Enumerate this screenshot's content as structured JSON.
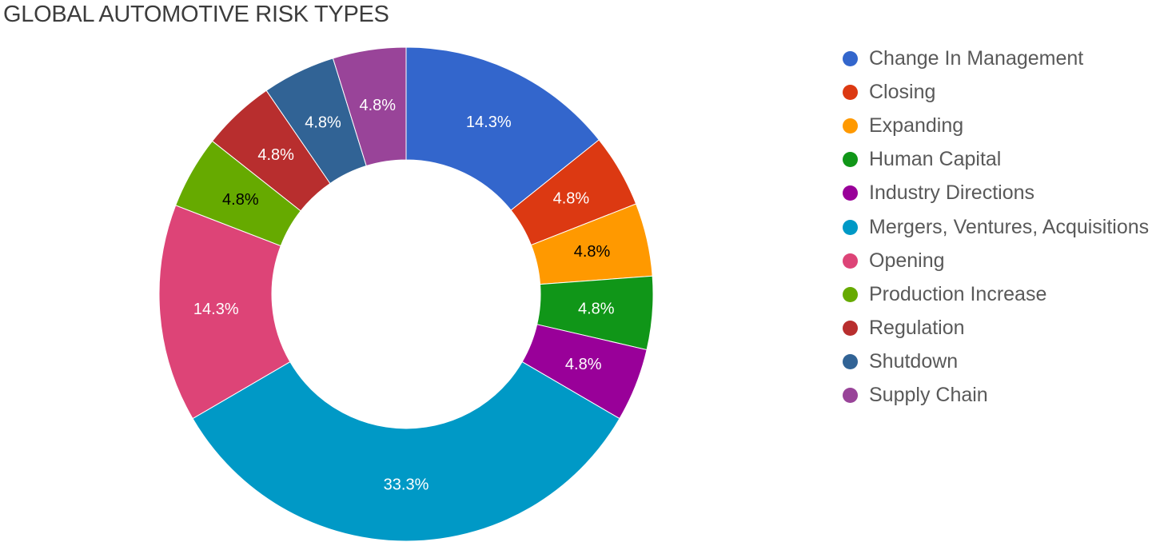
{
  "chart_data": {
    "type": "pie",
    "donut": true,
    "title": "GLOBAL AUTOMOTIVE RISK TYPES",
    "legend_position": "right",
    "series": [
      {
        "name": "Change In Management",
        "value": 14.3,
        "label": "14.3%",
        "color": "#3366cc",
        "label_color": "#ffffff"
      },
      {
        "name": "Closing",
        "value": 4.8,
        "label": "4.8%",
        "color": "#dc3912",
        "label_color": "#ffffff"
      },
      {
        "name": "Expanding",
        "value": 4.8,
        "label": "4.8%",
        "color": "#ff9900",
        "label_color": "#000000"
      },
      {
        "name": "Human Capital",
        "value": 4.8,
        "label": "4.8%",
        "color": "#109618",
        "label_color": "#ffffff"
      },
      {
        "name": "Industry Directions",
        "value": 4.8,
        "label": "4.8%",
        "color": "#990099",
        "label_color": "#ffffff"
      },
      {
        "name": "Mergers, Ventures, Acquisitions",
        "value": 33.3,
        "label": "33.3%",
        "color": "#0099c6",
        "label_color": "#ffffff"
      },
      {
        "name": "Opening",
        "value": 14.3,
        "label": "14.3%",
        "color": "#dd4477",
        "label_color": "#ffffff"
      },
      {
        "name": "Production Increase",
        "value": 4.8,
        "label": "4.8%",
        "color": "#66aa00",
        "label_color": "#000000"
      },
      {
        "name": "Regulation",
        "value": 4.8,
        "label": "4.8%",
        "color": "#b82e2e",
        "label_color": "#ffffff"
      },
      {
        "name": "Shutdown",
        "value": 4.8,
        "label": "4.8%",
        "color": "#316395",
        "label_color": "#ffffff"
      },
      {
        "name": "Supply Chain",
        "value": 4.8,
        "label": "4.8%",
        "color": "#994499",
        "label_color": "#ffffff"
      }
    ]
  }
}
